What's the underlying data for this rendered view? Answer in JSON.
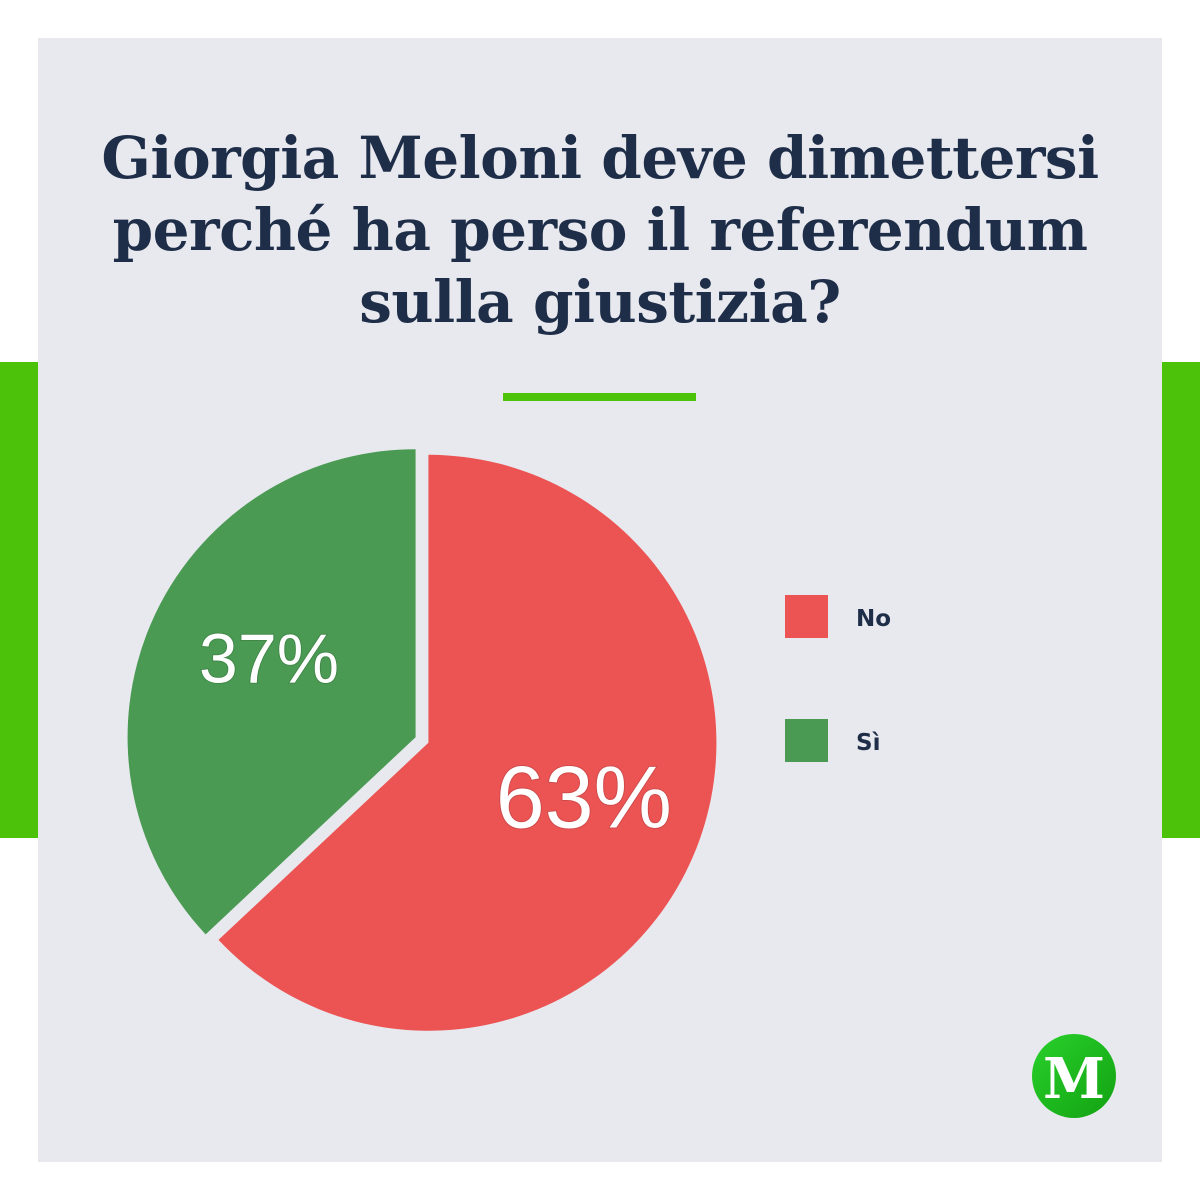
{
  "title_lines": [
    "Giorgia Meloni deve dimettersi",
    "perché ha perso il referendum",
    "sulla giustizia?"
  ],
  "colors": {
    "accent": "#4cc20b",
    "background": "#e8e9ee",
    "title": "#1e2d48",
    "no": "#ec5454",
    "si": "#4a9a53"
  },
  "chart_data": {
    "type": "pie",
    "title": "Giorgia Meloni deve dimettersi perché ha perso il referendum sulla giustizia?",
    "slices": [
      {
        "label": "No",
        "value": 63,
        "display": "63%",
        "color": "#ec5454"
      },
      {
        "label": "Sì",
        "value": 37,
        "display": "37%",
        "color": "#4a9a53"
      }
    ],
    "legend_position": "right"
  },
  "logo": {
    "letter": "M",
    "icon": "brand-logo-icon"
  }
}
